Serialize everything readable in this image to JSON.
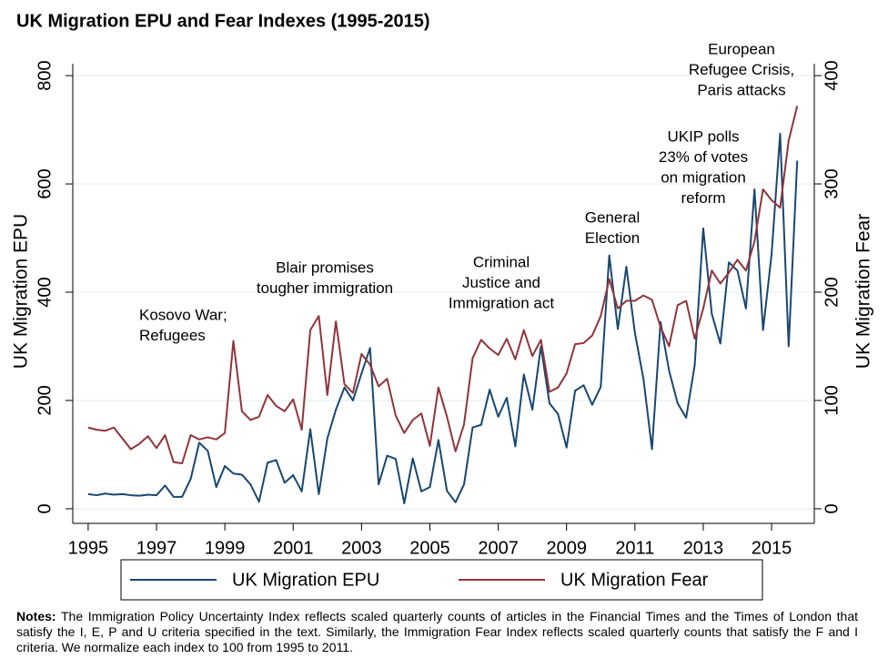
{
  "chart_data": {
    "type": "line",
    "title": "UK Migration EPU and Fear Indexes (1995-2015)",
    "y_label": "UK Migration EPU",
    "y2_label": "UK Migration Fear",
    "x": [
      1995,
      1995.25,
      1995.5,
      1995.75,
      1996,
      1996.25,
      1996.5,
      1996.75,
      1997,
      1997.25,
      1997.5,
      1997.75,
      1998,
      1998.25,
      1998.5,
      1998.75,
      1999,
      1999.25,
      1999.5,
      1999.75,
      2000,
      2000.25,
      2000.5,
      2000.75,
      2001,
      2001.25,
      2001.5,
      2001.75,
      2002,
      2002.25,
      2002.5,
      2002.75,
      2003,
      2003.25,
      2003.5,
      2003.75,
      2004,
      2004.25,
      2004.5,
      2004.75,
      2005,
      2005.25,
      2005.5,
      2005.75,
      2006,
      2006.25,
      2006.5,
      2006.75,
      2007,
      2007.25,
      2007.5,
      2007.75,
      2008,
      2008.25,
      2008.5,
      2008.75,
      2009,
      2009.25,
      2009.5,
      2009.75,
      2010,
      2010.25,
      2010.5,
      2010.75,
      2011,
      2011.25,
      2011.5,
      2011.75,
      2012,
      2012.25,
      2012.5,
      2012.75,
      2013,
      2013.25,
      2013.5,
      2013.75,
      2014,
      2014.25,
      2014.5,
      2014.75,
      2015,
      2015.25,
      2015.5,
      2015.75
    ],
    "series": [
      {
        "name": "UK Migration EPU",
        "color": "#1a476f",
        "axis": "y",
        "values": [
          27,
          25,
          28,
          26,
          27,
          25,
          24,
          26,
          25,
          43,
          22,
          22,
          55,
          122,
          107,
          40,
          79,
          65,
          63,
          45,
          13,
          85,
          90,
          48,
          62,
          32,
          147,
          27,
          130,
          183,
          224,
          200,
          250,
          297,
          45,
          98,
          92,
          10,
          93,
          32,
          40,
          127,
          33,
          12,
          45,
          150,
          155,
          220,
          170,
          205,
          115,
          248,
          183,
          300,
          195,
          175,
          113,
          218,
          228,
          192,
          225,
          468,
          332,
          447,
          325,
          240,
          110,
          345,
          255,
          195,
          168,
          265,
          518,
          360,
          305,
          455,
          440,
          370,
          590,
          330,
          470,
          693,
          300,
          643
        ]
      },
      {
        "name": "UK Migration Fear",
        "color": "#90353b",
        "axis": "y2",
        "values": [
          75,
          73,
          72,
          75,
          65,
          55,
          60,
          67,
          56,
          68,
          43,
          42,
          68,
          64,
          66,
          64,
          70,
          155,
          90,
          82,
          85,
          105,
          95,
          90,
          101,
          73,
          165,
          178,
          105,
          173,
          115,
          107,
          143,
          133,
          113,
          120,
          86,
          70,
          82,
          88,
          58,
          112,
          85,
          53,
          78,
          139,
          156,
          148,
          142,
          157,
          138,
          165,
          141,
          156,
          108,
          112,
          125,
          152,
          153,
          160,
          178,
          212,
          185,
          192,
          192,
          197,
          193,
          168,
          150,
          188,
          192,
          157,
          185,
          220,
          208,
          218,
          230,
          220,
          247,
          295,
          285,
          278,
          340,
          372
        ]
      }
    ],
    "xlim": [
      1994.55,
      2016.25
    ],
    "xticks": [
      1995,
      1997,
      1999,
      2001,
      2003,
      2005,
      2007,
      2009,
      2011,
      2013,
      2015
    ],
    "ylim": [
      -27,
      822
    ],
    "yticks": [
      0,
      200,
      400,
      600,
      800
    ],
    "y2lim": [
      -13.5,
      411
    ],
    "y2ticks": [
      0,
      100,
      200,
      300,
      400
    ],
    "grid": true,
    "legend": "bottom",
    "annotations": [
      [
        "Kosovo War;",
        "Refugees"
      ],
      [
        "Blair promises",
        "tougher immigration"
      ],
      [
        "Criminal",
        "Justice and",
        "Immigration act"
      ],
      [
        "General",
        "Election"
      ],
      [
        "UKIP polls",
        "23% of votes",
        "on migration",
        "reform"
      ],
      [
        "European",
        "Refugee Crisis,",
        "Paris attacks"
      ]
    ],
    "notes_label": "Notes:",
    "notes": "The Immigration Policy Uncertainty Index reflects scaled quarterly counts of articles in the Financial Times and the Times of London that satisfy the I, E, P and U criteria specified in the text.  Similarly, the Immigration Fear Index reflects scaled quarterly counts that satisfy the F and I criteria.  We normalize each index to 100 from 1995 to 2011."
  }
}
